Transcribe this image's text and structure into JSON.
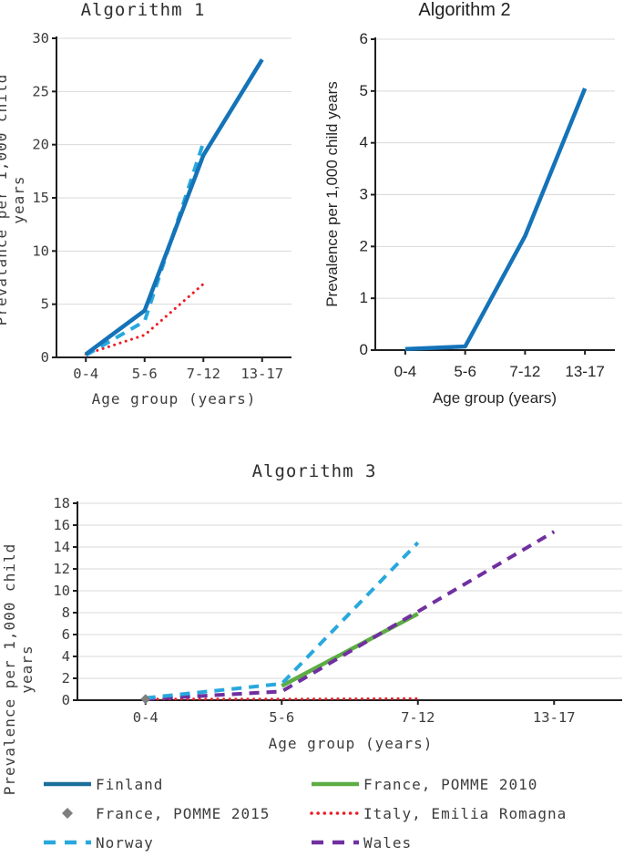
{
  "style": {
    "grid_color": "#d9d9d9",
    "axis_color": "#1f1f1f",
    "text_color": "#3d3d3d"
  },
  "chart_data": [
    {
      "id": "algorithm-1",
      "type": "line",
      "title": "Algorithm 1",
      "font": "mono",
      "xlabel": "Age group (years)",
      "ylabel": "Prevalance per 1,000 child years",
      "categories": [
        "0-4",
        "5-6",
        "7-12",
        "13-17"
      ],
      "ymin": 0,
      "ymax": 30,
      "ystep": 5,
      "grid": true,
      "legend_position": "none",
      "series": [
        {
          "name": "Italy, Emilia Romagna",
          "color": "#ec1d24",
          "style": "dotted",
          "values": [
            0.3,
            2.1,
            6.9,
            null
          ]
        },
        {
          "name": "Norway",
          "color": "#29a8dd",
          "style": "dashed",
          "values": [
            0.2,
            3.4,
            20.2,
            null
          ]
        },
        {
          "name": "Finland",
          "color": "#1573b8",
          "style": "solid",
          "values": [
            0.3,
            4.4,
            19.0,
            28.0
          ]
        }
      ]
    },
    {
      "id": "algorithm-2",
      "type": "line",
      "title": "Algorithm 2",
      "font": "sans",
      "xlabel": "Age group (years)",
      "ylabel": "Prevalence per 1,000 child years",
      "categories": [
        "0-4",
        "5-6",
        "7-12",
        "13-17"
      ],
      "ymin": 0,
      "ymax": 6,
      "ystep": 1,
      "grid": true,
      "legend_position": "none",
      "series": [
        {
          "name": "Finland",
          "color": "#1573b8",
          "style": "solid",
          "values": [
            0.02,
            0.07,
            2.2,
            5.05
          ]
        }
      ]
    },
    {
      "id": "algorithm-3",
      "type": "line",
      "title": "Algorithm 3",
      "font": "mono",
      "xlabel": "Age group (years)",
      "ylabel": "Prevalence per 1,000 child\nyears",
      "categories": [
        "0-4",
        "5-6",
        "7-12",
        "13-17"
      ],
      "ymin": 0,
      "ymax": 18,
      "ystep": 2,
      "grid": true,
      "legend_position": "bottom",
      "series": [
        {
          "name": "Italy, Emilia Romagna",
          "color": "#ec1d24",
          "style": "dotted",
          "values": [
            0.1,
            0.1,
            0.15,
            null
          ]
        },
        {
          "name": "France, POMME 2010",
          "color": "#5dad44",
          "style": "solid",
          "values": [
            null,
            1.3,
            7.9,
            null
          ]
        },
        {
          "name": "Wales",
          "color": "#7030a0",
          "style": "dashed",
          "values": [
            0.1,
            0.8,
            8.1,
            15.4
          ]
        },
        {
          "name": "Norway",
          "color": "#29a8dd",
          "style": "dashed",
          "values": [
            0.2,
            1.5,
            14.4,
            null
          ]
        },
        {
          "name": "France, POMME 2015",
          "color": "#7f7f7f",
          "style": "diamond",
          "values": [
            0.1,
            null,
            null,
            null
          ]
        }
      ]
    }
  ],
  "legend": [
    {
      "label": "Finland",
      "color": "#1b6d9b",
      "style": "solid"
    },
    {
      "label": "France, POMME 2010",
      "color": "#5dad44",
      "style": "solid"
    },
    {
      "label": "France, POMME 2015",
      "color": "#7f7f7f",
      "style": "diamond"
    },
    {
      "label": "Italy, Emilia Romagna",
      "color": "#ec1d24",
      "style": "dotted"
    },
    {
      "label": "Norway",
      "color": "#29a8dd",
      "style": "dashed"
    },
    {
      "label": "Wales",
      "color": "#7030a0",
      "style": "dashed"
    }
  ]
}
